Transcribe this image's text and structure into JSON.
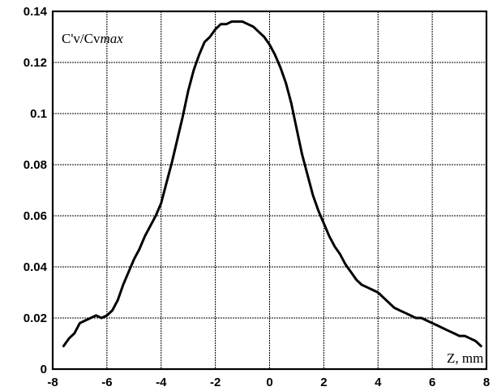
{
  "chart_data": {
    "type": "line",
    "title": "",
    "xlabel": "Z, mm",
    "ylabel_parts": {
      "main": "C'v/Cv",
      "italic": "max"
    },
    "xlim": [
      -8,
      8
    ],
    "ylim": [
      0,
      0.14
    ],
    "xticks": [
      -8,
      -6,
      -4,
      -2,
      0,
      2,
      4,
      6,
      8
    ],
    "xtick_labels": [
      "-8",
      "-6",
      "-4",
      "-2",
      "0",
      "2",
      "4",
      "6",
      "8"
    ],
    "yticks": [
      0,
      0.02,
      0.04,
      0.06,
      0.08,
      0.1,
      0.12,
      0.14
    ],
    "ytick_labels": [
      "0",
      "0.02",
      "0.04",
      "0.06",
      "0.08",
      "0.1",
      "0.12",
      "0.14"
    ],
    "grid": true,
    "line_color": "#000000",
    "series": [
      {
        "x": [
          -7.6,
          -7.4,
          -7.2,
          -7.0,
          -6.8,
          -6.6,
          -6.4,
          -6.2,
          -6.0,
          -5.8,
          -5.6,
          -5.4,
          -5.2,
          -5.0,
          -4.8,
          -4.6,
          -4.4,
          -4.2,
          -4.0,
          -3.8,
          -3.6,
          -3.4,
          -3.2,
          -3.0,
          -2.8,
          -2.6,
          -2.4,
          -2.2,
          -2.0,
          -1.8,
          -1.6,
          -1.4,
          -1.2,
          -1.0,
          -0.8,
          -0.6,
          -0.4,
          -0.2,
          0.0,
          0.2,
          0.4,
          0.6,
          0.8,
          1.0,
          1.2,
          1.4,
          1.6,
          1.8,
          2.0,
          2.2,
          2.4,
          2.6,
          2.8,
          3.0,
          3.2,
          3.4,
          3.6,
          3.8,
          4.0,
          4.2,
          4.4,
          4.6,
          4.8,
          5.0,
          5.2,
          5.4,
          5.6,
          5.8,
          6.0,
          6.2,
          6.4,
          6.6,
          6.8,
          7.0,
          7.2,
          7.4,
          7.6,
          7.8
        ],
        "y": [
          0.009,
          0.012,
          0.014,
          0.018,
          0.019,
          0.02,
          0.021,
          0.02,
          0.021,
          0.023,
          0.027,
          0.033,
          0.038,
          0.043,
          0.047,
          0.052,
          0.056,
          0.06,
          0.065,
          0.073,
          0.081,
          0.09,
          0.099,
          0.109,
          0.117,
          0.123,
          0.128,
          0.13,
          0.133,
          0.135,
          0.135,
          0.136,
          0.136,
          0.136,
          0.135,
          0.134,
          0.132,
          0.13,
          0.127,
          0.123,
          0.118,
          0.112,
          0.104,
          0.094,
          0.084,
          0.076,
          0.068,
          0.062,
          0.057,
          0.052,
          0.048,
          0.045,
          0.041,
          0.038,
          0.035,
          0.033,
          0.032,
          0.031,
          0.03,
          0.028,
          0.026,
          0.024,
          0.023,
          0.022,
          0.021,
          0.02,
          0.02,
          0.019,
          0.018,
          0.017,
          0.016,
          0.015,
          0.014,
          0.013,
          0.013,
          0.012,
          0.011,
          0.009
        ]
      }
    ]
  }
}
